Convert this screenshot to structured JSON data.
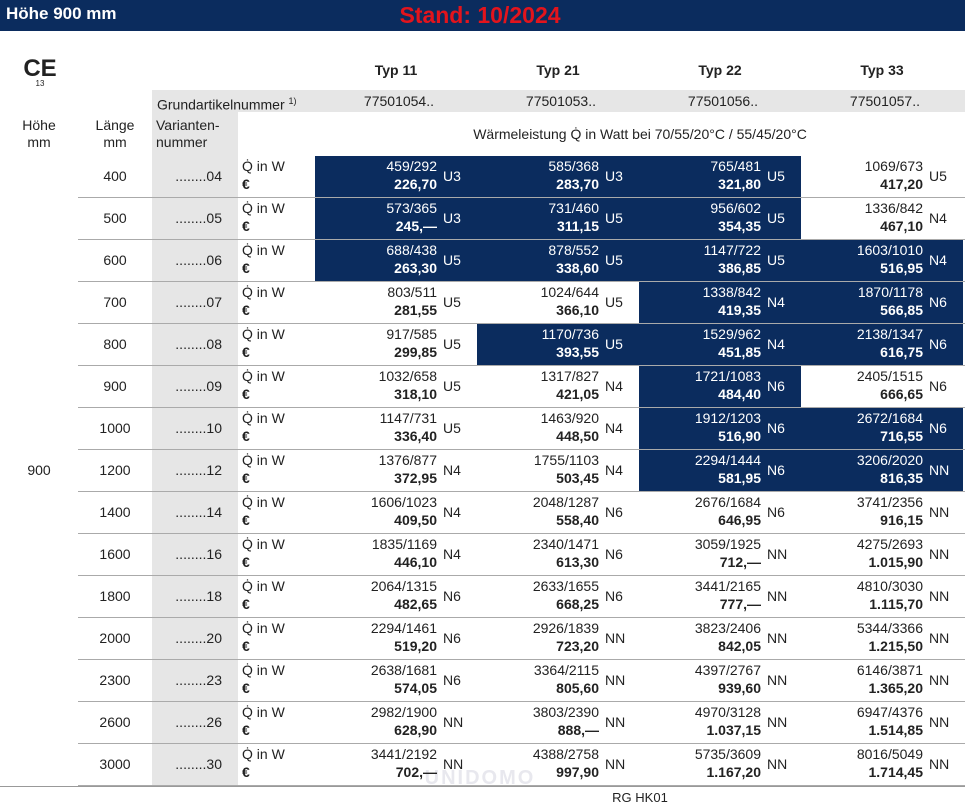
{
  "header": {
    "title": "Höhe 900 mm",
    "stand": "Stand: 10/2024"
  },
  "ce": {
    "mark": "CE",
    "number": "13"
  },
  "types": [
    "Typ 11",
    "Typ 21",
    "Typ 22",
    "Typ 33"
  ],
  "base": {
    "label": "Grundartikelnummer",
    "note": "1)",
    "numbers": [
      "77501054..",
      "77501053..",
      "77501056..",
      "77501057.."
    ]
  },
  "columns": {
    "height": "Höhe\nmm",
    "length": "Länge\nmm",
    "variant": "Varianten-\nnummer",
    "output": "Wärmeleistung Q̇ in Watt bei 70/55/20°C / 55/45/20°C"
  },
  "height": "900",
  "power_label": "Q̇ in W",
  "price_label": "€",
  "rows": [
    {
      "length": "400",
      "variant": "........04",
      "cells": [
        {
          "w": "459/292",
          "eur": "226,70",
          "cls": "U3",
          "dark": true
        },
        {
          "w": "585/368",
          "eur": "283,70",
          "cls": "U3",
          "dark": true
        },
        {
          "w": "765/481",
          "eur": "321,80",
          "cls": "U5",
          "dark": true
        },
        {
          "w": "1069/673",
          "eur": "417,20",
          "cls": "U5",
          "dark": false
        }
      ]
    },
    {
      "length": "500",
      "variant": "........05",
      "cells": [
        {
          "w": "573/365",
          "eur": "245,—",
          "cls": "U3",
          "dark": true
        },
        {
          "w": "731/460",
          "eur": "311,15",
          "cls": "U5",
          "dark": true
        },
        {
          "w": "956/602",
          "eur": "354,35",
          "cls": "U5",
          "dark": true
        },
        {
          "w": "1336/842",
          "eur": "467,10",
          "cls": "N4",
          "dark": false
        }
      ]
    },
    {
      "length": "600",
      "variant": "........06",
      "cells": [
        {
          "w": "688/438",
          "eur": "263,30",
          "cls": "U5",
          "dark": true
        },
        {
          "w": "878/552",
          "eur": "338,60",
          "cls": "U5",
          "dark": true
        },
        {
          "w": "1147/722",
          "eur": "386,85",
          "cls": "U5",
          "dark": true
        },
        {
          "w": "1603/1010",
          "eur": "516,95",
          "cls": "N4",
          "dark": true
        }
      ]
    },
    {
      "length": "700",
      "variant": "........07",
      "cells": [
        {
          "w": "803/511",
          "eur": "281,55",
          "cls": "U5",
          "dark": false
        },
        {
          "w": "1024/644",
          "eur": "366,10",
          "cls": "U5",
          "dark": false
        },
        {
          "w": "1338/842",
          "eur": "419,35",
          "cls": "N4",
          "dark": true
        },
        {
          "w": "1870/1178",
          "eur": "566,85",
          "cls": "N6",
          "dark": true
        }
      ]
    },
    {
      "length": "800",
      "variant": "........08",
      "cells": [
        {
          "w": "917/585",
          "eur": "299,85",
          "cls": "U5",
          "dark": false
        },
        {
          "w": "1170/736",
          "eur": "393,55",
          "cls": "U5",
          "dark": true
        },
        {
          "w": "1529/962",
          "eur": "451,85",
          "cls": "N4",
          "dark": true
        },
        {
          "w": "2138/1347",
          "eur": "616,75",
          "cls": "N6",
          "dark": true
        }
      ]
    },
    {
      "length": "900",
      "variant": "........09",
      "cells": [
        {
          "w": "1032/658",
          "eur": "318,10",
          "cls": "U5",
          "dark": false
        },
        {
          "w": "1317/827",
          "eur": "421,05",
          "cls": "N4",
          "dark": false
        },
        {
          "w": "1721/1083",
          "eur": "484,40",
          "cls": "N6",
          "dark": true
        },
        {
          "w": "2405/1515",
          "eur": "666,65",
          "cls": "N6",
          "dark": false
        }
      ]
    },
    {
      "length": "1000",
      "variant": "........10",
      "cells": [
        {
          "w": "1147/731",
          "eur": "336,40",
          "cls": "U5",
          "dark": false
        },
        {
          "w": "1463/920",
          "eur": "448,50",
          "cls": "N4",
          "dark": false
        },
        {
          "w": "1912/1203",
          "eur": "516,90",
          "cls": "N6",
          "dark": true
        },
        {
          "w": "2672/1684",
          "eur": "716,55",
          "cls": "N6",
          "dark": true
        }
      ]
    },
    {
      "length": "1200",
      "variant": "........12",
      "cells": [
        {
          "w": "1376/877",
          "eur": "372,95",
          "cls": "N4",
          "dark": false
        },
        {
          "w": "1755/1103",
          "eur": "503,45",
          "cls": "N4",
          "dark": false
        },
        {
          "w": "2294/1444",
          "eur": "581,95",
          "cls": "N6",
          "dark": true
        },
        {
          "w": "3206/2020",
          "eur": "816,35",
          "cls": "NN",
          "dark": true
        }
      ]
    },
    {
      "length": "1400",
      "variant": "........14",
      "cells": [
        {
          "w": "1606/1023",
          "eur": "409,50",
          "cls": "N4",
          "dark": false
        },
        {
          "w": "2048/1287",
          "eur": "558,40",
          "cls": "N6",
          "dark": false
        },
        {
          "w": "2676/1684",
          "eur": "646,95",
          "cls": "N6",
          "dark": false
        },
        {
          "w": "3741/2356",
          "eur": "916,15",
          "cls": "NN",
          "dark": false
        }
      ]
    },
    {
      "length": "1600",
      "variant": "........16",
      "cells": [
        {
          "w": "1835/1169",
          "eur": "446,10",
          "cls": "N4",
          "dark": false
        },
        {
          "w": "2340/1471",
          "eur": "613,30",
          "cls": "N6",
          "dark": false
        },
        {
          "w": "3059/1925",
          "eur": "712,—",
          "cls": "NN",
          "dark": false
        },
        {
          "w": "4275/2693",
          "eur": "1.015,90",
          "cls": "NN",
          "dark": false
        }
      ]
    },
    {
      "length": "1800",
      "variant": "........18",
      "cells": [
        {
          "w": "2064/1315",
          "eur": "482,65",
          "cls": "N6",
          "dark": false
        },
        {
          "w": "2633/1655",
          "eur": "668,25",
          "cls": "N6",
          "dark": false
        },
        {
          "w": "3441/2165",
          "eur": "777,—",
          "cls": "NN",
          "dark": false
        },
        {
          "w": "4810/3030",
          "eur": "1.115,70",
          "cls": "NN",
          "dark": false
        }
      ]
    },
    {
      "length": "2000",
      "variant": "........20",
      "cells": [
        {
          "w": "2294/1461",
          "eur": "519,20",
          "cls": "N6",
          "dark": false
        },
        {
          "w": "2926/1839",
          "eur": "723,20",
          "cls": "NN",
          "dark": false
        },
        {
          "w": "3823/2406",
          "eur": "842,05",
          "cls": "NN",
          "dark": false
        },
        {
          "w": "5344/3366",
          "eur": "1.215,50",
          "cls": "NN",
          "dark": false
        }
      ]
    },
    {
      "length": "2300",
      "variant": "........23",
      "cells": [
        {
          "w": "2638/1681",
          "eur": "574,05",
          "cls": "N6",
          "dark": false
        },
        {
          "w": "3364/2115",
          "eur": "805,60",
          "cls": "NN",
          "dark": false
        },
        {
          "w": "4397/2767",
          "eur": "939,60",
          "cls": "NN",
          "dark": false
        },
        {
          "w": "6146/3871",
          "eur": "1.365,20",
          "cls": "NN",
          "dark": false
        }
      ]
    },
    {
      "length": "2600",
      "variant": "........26",
      "cells": [
        {
          "w": "2982/1900",
          "eur": "628,90",
          "cls": "NN",
          "dark": false
        },
        {
          "w": "3803/2390",
          "eur": "888,—",
          "cls": "NN",
          "dark": false
        },
        {
          "w": "4970/3128",
          "eur": "1.037,15",
          "cls": "NN",
          "dark": false
        },
        {
          "w": "6947/4376",
          "eur": "1.514,85",
          "cls": "NN",
          "dark": false
        }
      ]
    },
    {
      "length": "3000",
      "variant": "........30",
      "cells": [
        {
          "w": "3441/2192",
          "eur": "702,—",
          "cls": "NN",
          "dark": false
        },
        {
          "w": "4388/2758",
          "eur": "997,90",
          "cls": "NN",
          "dark": false
        },
        {
          "w": "5735/3609",
          "eur": "1.167,20",
          "cls": "NN",
          "dark": false
        },
        {
          "w": "8016/5049",
          "eur": "1.714,45",
          "cls": "NN",
          "dark": false
        }
      ]
    }
  ],
  "watermark": "UNIDOMO",
  "footer": "RG HK01"
}
